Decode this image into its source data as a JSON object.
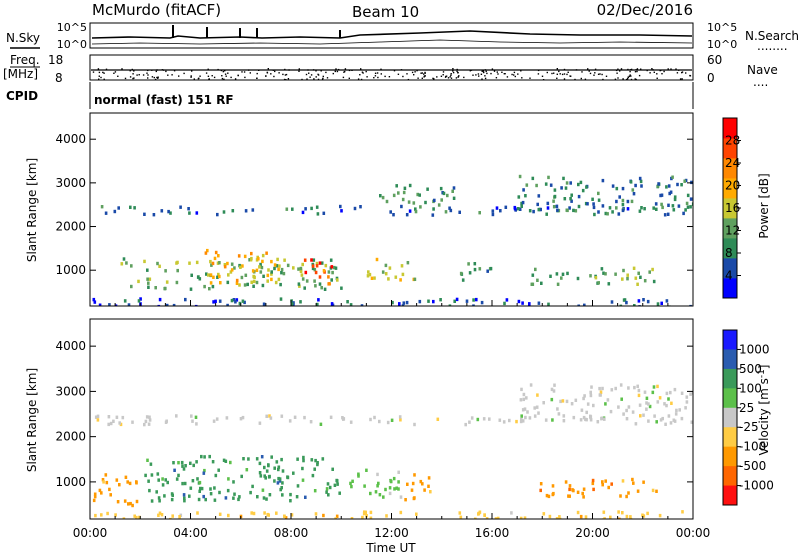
{
  "header": {
    "station": "McMurdo (fitACF)",
    "beam": "Beam 10",
    "date": "02/Dec/2016"
  },
  "side_labels": {
    "nsky": "N.Sky",
    "freq": "Freq.",
    "freq_unit": "[MHz]",
    "cpid": "CPID",
    "nsearch": "N.Search",
    "nave": "Nave",
    "dots_long": "........",
    "dots_short": "...."
  },
  "noise_panel": {
    "left_ticks": [
      "10^5",
      "10^0"
    ],
    "right_ticks": [
      "10^5",
      "10^0"
    ]
  },
  "freq_panel": {
    "left_ticks": [
      "18",
      "8"
    ],
    "right_ticks": [
      "60",
      "0"
    ]
  },
  "cpid_panel": {
    "text": "normal (fast) 151 RF"
  },
  "x_axis": {
    "ticks": [
      "00:00",
      "04:00",
      "08:00",
      "12:00",
      "16:00",
      "20:00",
      "00:00"
    ],
    "label": "Time UT"
  },
  "colors": {
    "power": [
      "#0000ff",
      "#1a4aa8",
      "#2e8b57",
      "#5fa05f",
      "#c8c832",
      "#ffaa00",
      "#ff8800",
      "#ff4400",
      "#ff0000"
    ],
    "velocity": [
      "#1a1aff",
      "#2a5cb0",
      "#3a9a5a",
      "#5cc04a",
      "#c8c8c8",
      "#ffcc44",
      "#ff9900",
      "#ff6600",
      "#ff1010"
    ]
  },
  "chart_data": [
    {
      "type": "heatmap",
      "title": "",
      "xlabel": "",
      "ylabel": "Slant Range [km]",
      "x_range_hours": [
        0,
        24
      ],
      "ylim_km": [
        180,
        4600
      ],
      "y_ticks": [
        "1000",
        "2000",
        "3000",
        "4000"
      ],
      "y_tick_values": [
        1000,
        2000,
        3000,
        4000
      ],
      "colorbar": {
        "label": "Power [dB]",
        "range": [
          0,
          32
        ],
        "tick_labels": [
          "4",
          "8",
          "12",
          "16",
          "20",
          "24",
          "28"
        ],
        "tick_values": [
          4,
          8,
          12,
          16,
          20,
          24,
          28
        ]
      },
      "regions": [
        {
          "t0": 0.1,
          "t1": 24.0,
          "r0": 190,
          "r1": 380,
          "v": 6
        },
        {
          "t0": 1.2,
          "t1": 10.0,
          "r0": 600,
          "r1": 1300,
          "v": 14
        },
        {
          "t0": 4.5,
          "t1": 7.5,
          "r0": 700,
          "r1": 1500,
          "v": 22
        },
        {
          "t0": 8.5,
          "t1": 9.6,
          "r0": 600,
          "r1": 1300,
          "v": 28
        },
        {
          "t0": 11.0,
          "t1": 13.0,
          "r0": 800,
          "r1": 1300,
          "v": 18
        },
        {
          "t0": 14.5,
          "t1": 16.0,
          "r0": 800,
          "r1": 1200,
          "v": 12
        },
        {
          "t0": 17.5,
          "t1": 22.5,
          "r0": 700,
          "r1": 1100,
          "v": 13
        },
        {
          "t0": 0.1,
          "t1": 24.0,
          "r0": 2300,
          "r1": 2500,
          "v": 8
        },
        {
          "t0": 17.0,
          "t1": 24.0,
          "r0": 2400,
          "r1": 3200,
          "v": 9
        },
        {
          "t0": 11.5,
          "t1": 14.5,
          "r0": 2500,
          "r1": 3000,
          "v": 11
        }
      ]
    },
    {
      "type": "heatmap",
      "title": "",
      "xlabel": "Time UT",
      "ylabel": "Slant Range [km]",
      "x_range_hours": [
        0,
        24
      ],
      "ylim_km": [
        180,
        4600
      ],
      "y_ticks": [
        "1000",
        "2000",
        "3000",
        "4000"
      ],
      "y_tick_values": [
        1000,
        2000,
        3000,
        4000
      ],
      "colorbar": {
        "label": "Velocity [m s^-1]",
        "tick_labels": [
          "1000",
          "500",
          "100",
          "25",
          "-25",
          "-100",
          "-500",
          "-1000"
        ]
      },
      "regions": [
        {
          "t0": 0.1,
          "t1": 24.0,
          "r0": 190,
          "r1": 380,
          "v": 5
        },
        {
          "t0": 0.1,
          "t1": 2.0,
          "r0": 500,
          "r1": 1200,
          "v": 6
        },
        {
          "t0": 2.0,
          "t1": 10.0,
          "r0": 600,
          "r1": 1600,
          "v": 2
        },
        {
          "t0": 10.0,
          "t1": 12.5,
          "r0": 700,
          "r1": 1300,
          "v": 3
        },
        {
          "t0": 12.5,
          "t1": 13.5,
          "r0": 600,
          "r1": 1300,
          "v": 6
        },
        {
          "t0": 17.5,
          "t1": 22.5,
          "r0": 700,
          "r1": 1100,
          "v": 6
        },
        {
          "t0": 0.1,
          "t1": 24.0,
          "r0": 2300,
          "r1": 2500,
          "v": 4
        },
        {
          "t0": 17.0,
          "t1": 24.0,
          "r0": 2400,
          "r1": 3200,
          "v": 4
        }
      ]
    }
  ]
}
